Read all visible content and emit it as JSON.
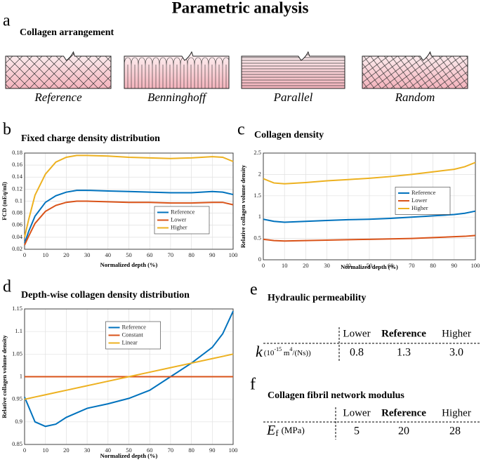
{
  "title": "Parametric analysis",
  "panel_a": {
    "label": "a",
    "title": "Collagen arrangement",
    "arrangements": [
      "Reference",
      "Benninghoff",
      "Parallel",
      "Random"
    ]
  },
  "chart_data": [
    {
      "type": "line",
      "panel": "b",
      "title": "Fixed charge density distribution",
      "x_label": "Normalized depth (%)",
      "y_label": "FCD (mEq/ml)",
      "x": [
        0,
        2,
        5,
        10,
        15,
        20,
        25,
        30,
        40,
        50,
        60,
        70,
        80,
        90,
        95,
        100
      ],
      "series": [
        {
          "name": "Reference",
          "color": "#0072bd",
          "values": [
            0.03,
            0.05,
            0.075,
            0.098,
            0.109,
            0.115,
            0.118,
            0.118,
            0.117,
            0.116,
            0.115,
            0.114,
            0.114,
            0.116,
            0.115,
            0.111
          ]
        },
        {
          "name": "Lower",
          "color": "#d95319",
          "values": [
            0.027,
            0.042,
            0.063,
            0.083,
            0.093,
            0.098,
            0.1,
            0.1,
            0.099,
            0.098,
            0.098,
            0.097,
            0.097,
            0.098,
            0.098,
            0.094
          ]
        },
        {
          "name": "Higher",
          "color": "#edb120",
          "values": [
            0.04,
            0.07,
            0.11,
            0.145,
            0.165,
            0.173,
            0.176,
            0.176,
            0.175,
            0.173,
            0.172,
            0.171,
            0.172,
            0.174,
            0.173,
            0.166
          ]
        }
      ],
      "xlim": [
        0,
        100
      ],
      "ylim": [
        0.02,
        0.18
      ],
      "xticks": [
        0,
        10,
        20,
        30,
        40,
        50,
        60,
        70,
        80,
        90,
        100
      ],
      "yticks": [
        0.02,
        0.04,
        0.06,
        0.08,
        0.1,
        0.12,
        0.14,
        0.16,
        0.18
      ],
      "grid": true,
      "legend": "lower right"
    },
    {
      "type": "line",
      "panel": "c",
      "title": "Collagen density",
      "x_label": "Normalized depth (%)",
      "y_label": "Relative collagen volume density",
      "x": [
        0,
        5,
        10,
        20,
        30,
        40,
        50,
        60,
        70,
        80,
        90,
        95,
        100
      ],
      "series": [
        {
          "name": "Reference",
          "color": "#0072bd",
          "values": [
            0.95,
            0.9,
            0.88,
            0.9,
            0.92,
            0.94,
            0.95,
            0.97,
            1.0,
            1.03,
            1.06,
            1.09,
            1.14
          ]
        },
        {
          "name": "Lower",
          "color": "#d95319",
          "values": [
            0.48,
            0.45,
            0.44,
            0.45,
            0.46,
            0.47,
            0.48,
            0.49,
            0.5,
            0.52,
            0.54,
            0.55,
            0.57
          ]
        },
        {
          "name": "Higher",
          "color": "#edb120",
          "values": [
            1.9,
            1.8,
            1.78,
            1.81,
            1.85,
            1.88,
            1.91,
            1.95,
            2.0,
            2.06,
            2.12,
            2.18,
            2.28
          ]
        }
      ],
      "xlim": [
        0,
        100
      ],
      "ylim": [
        0,
        2.5
      ],
      "xticks": [
        0,
        10,
        20,
        30,
        40,
        50,
        60,
        70,
        80,
        90,
        100
      ],
      "yticks": [
        0,
        0.5,
        1,
        1.5,
        2,
        2.5
      ],
      "grid": true,
      "legend": "center right"
    },
    {
      "type": "line",
      "panel": "d",
      "title": "Depth-wise collagen density distribution",
      "x_label": "Normalized depth (%)",
      "y_label": "Relative collagen volume density",
      "x": [
        0,
        5,
        10,
        15,
        20,
        30,
        40,
        50,
        60,
        70,
        80,
        90,
        95,
        100
      ],
      "series": [
        {
          "name": "Reference",
          "color": "#0072bd",
          "values": [
            0.955,
            0.9,
            0.89,
            0.895,
            0.91,
            0.93,
            0.94,
            0.952,
            0.97,
            1.0,
            1.03,
            1.065,
            1.095,
            1.145
          ]
        },
        {
          "name": "Constant",
          "color": "#d95319",
          "values": [
            1,
            1,
            1,
            1,
            1,
            1,
            1,
            1,
            1,
            1,
            1,
            1,
            1,
            1
          ]
        },
        {
          "name": "Linear",
          "color": "#edb120",
          "values": [
            0.95,
            0.955,
            0.96,
            0.965,
            0.97,
            0.98,
            0.99,
            1,
            1.01,
            1.02,
            1.03,
            1.04,
            1.045,
            1.05
          ]
        }
      ],
      "xlim": [
        0,
        100
      ],
      "ylim": [
        0.85,
        1.15
      ],
      "xticks": [
        0,
        10,
        20,
        30,
        40,
        50,
        60,
        70,
        80,
        90,
        100
      ],
      "yticks": [
        0.85,
        0.9,
        0.95,
        1,
        1.05,
        1.1,
        1.15
      ],
      "grid": true,
      "legend": "upper center"
    }
  ],
  "tables": [
    {
      "label": "e",
      "title": "Hydraulic permeability",
      "columns": [
        "Lower",
        "Reference",
        "Higher"
      ],
      "row_symbol": "k",
      "row_unit": [
        "(10",
        "-15",
        " m",
        "4",
        "/(Ns))"
      ],
      "values": [
        "0.8",
        "1.3",
        "3.0"
      ]
    },
    {
      "label": "f",
      "title": "Collagen fibril network modulus",
      "columns": [
        "Lower",
        "Reference",
        "Higher"
      ],
      "row_symbol": "E",
      "row_subscript": "f",
      "row_unit": [
        "(MPa)"
      ],
      "values": [
        "5",
        "20",
        "28"
      ]
    }
  ]
}
